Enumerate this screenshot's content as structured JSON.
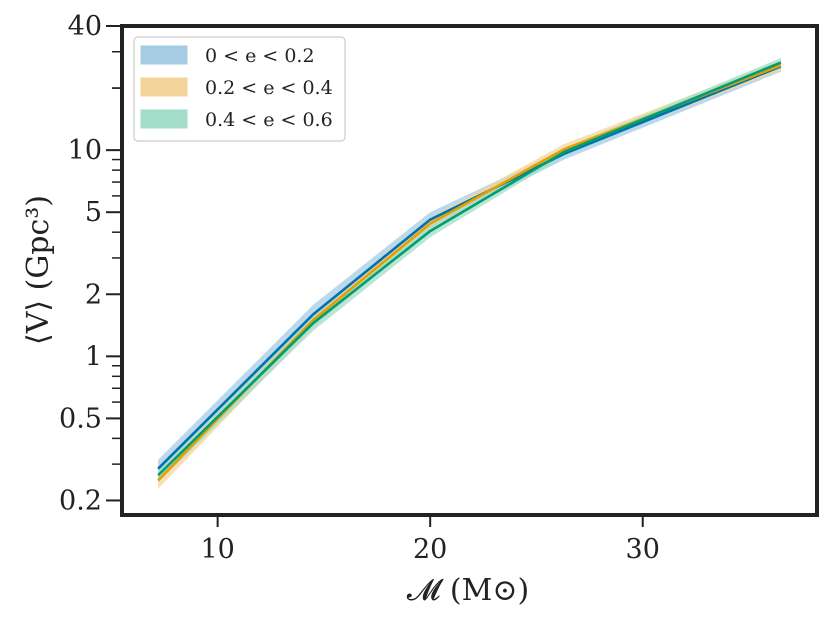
{
  "chart_data": {
    "type": "line",
    "xlabel": "𝓜 (M⊙)",
    "ylabel": "⟨V⟩ (Gpc³)",
    "xlim": [
      5.5,
      38.2
    ],
    "ylim": [
      0.17,
      40
    ],
    "yscale": "log",
    "xticks": [
      10,
      20,
      30
    ],
    "xtick_labels": [
      "10",
      "20",
      "30"
    ],
    "yticks": [
      0.2,
      0.5,
      1,
      2,
      5,
      10,
      40
    ],
    "ytick_labels": [
      "0.2",
      "0.5",
      "1",
      "2",
      "5",
      "10",
      "40"
    ],
    "grid": false,
    "legend_position": "top-left",
    "x": [
      7.2,
      14.5,
      20.0,
      26.3,
      36.5
    ],
    "series": [
      {
        "name": "0 < e < 0.2",
        "color": "#0072B2",
        "band_color": "#a6cce4",
        "values": [
          0.285,
          1.6,
          4.6,
          9.6,
          25.5
        ],
        "lower": [
          0.255,
          1.45,
          4.25,
          9.0,
          24.0
        ],
        "upper": [
          0.315,
          1.78,
          5.0,
          10.1,
          27.0
        ]
      },
      {
        "name": "0.2 < e < 0.4",
        "color": "#E69F00",
        "band_color": "#f3d49a",
        "values": [
          0.25,
          1.5,
          4.4,
          10.1,
          25.8
        ],
        "lower": [
          0.228,
          1.38,
          4.1,
          9.6,
          24.3
        ],
        "upper": [
          0.272,
          1.63,
          4.7,
          10.7,
          27.3
        ]
      },
      {
        "name": "0.4 < e < 0.6",
        "color": "#009E73",
        "band_color": "#a3dcc9",
        "values": [
          0.265,
          1.45,
          4.05,
          9.8,
          26.6
        ],
        "lower": [
          0.245,
          1.33,
          3.78,
          9.35,
          25.2
        ],
        "upper": [
          0.287,
          1.57,
          4.3,
          10.2,
          28.0
        ]
      }
    ]
  }
}
